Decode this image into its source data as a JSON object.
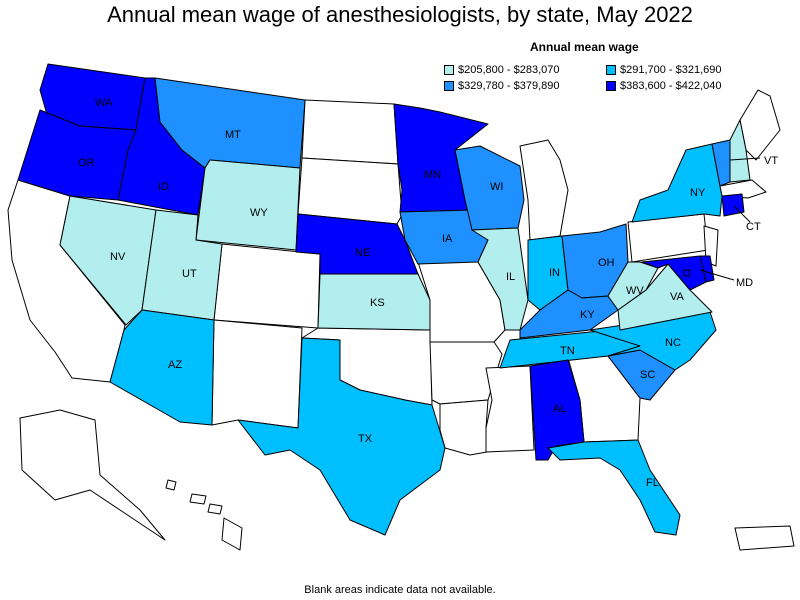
{
  "title": "Annual mean wage of anesthesiologists, by state, May 2022",
  "legend": {
    "title": "Annual mean wage",
    "items": [
      {
        "label": "$205,800 - $283,070",
        "color": "#b3eeee"
      },
      {
        "label": "$291,700 - $321,690",
        "color": "#00bfff"
      },
      {
        "label": "$329,780 - $379,890",
        "color": "#1e90ff"
      },
      {
        "label": "$383,600 - $422,040",
        "color": "#0000ff"
      }
    ]
  },
  "footnote": "Blank areas indicate data not available.",
  "states": {
    "WA": {
      "label": "WA",
      "bin": 3
    },
    "OR": {
      "label": "OR",
      "bin": 3
    },
    "ID": {
      "label": "ID",
      "bin": 3
    },
    "MT": {
      "label": "MT",
      "bin": 2
    },
    "WY": {
      "label": "WY",
      "bin": 0
    },
    "NV": {
      "label": "NV",
      "bin": 0
    },
    "UT": {
      "label": "UT",
      "bin": 0
    },
    "AZ": {
      "label": "AZ",
      "bin": 1
    },
    "NE": {
      "label": "NE",
      "bin": 3
    },
    "KS": {
      "label": "KS",
      "bin": 0
    },
    "TX": {
      "label": "TX",
      "bin": 1
    },
    "MN": {
      "label": "MN",
      "bin": 3
    },
    "IA": {
      "label": "IA",
      "bin": 2
    },
    "WI": {
      "label": "WI",
      "bin": 2
    },
    "IL": {
      "label": "IL",
      "bin": 0
    },
    "IN": {
      "label": "IN",
      "bin": 1
    },
    "OH": {
      "label": "OH",
      "bin": 2
    },
    "KY": {
      "label": "KY",
      "bin": 2
    },
    "TN": {
      "label": "TN",
      "bin": 1
    },
    "AL": {
      "label": "AL",
      "bin": 3
    },
    "FL": {
      "label": "FL",
      "bin": 1
    },
    "SC": {
      "label": "SC",
      "bin": 2
    },
    "NC": {
      "label": "NC",
      "bin": 1
    },
    "VA": {
      "label": "VA",
      "bin": 0
    },
    "WV": {
      "label": "WV",
      "bin": 0
    },
    "MD": {
      "label": "MD",
      "bin": 3
    },
    "NY": {
      "label": "NY",
      "bin": 1
    },
    "VT": {
      "label": "VT",
      "bin": 2
    },
    "CT": {
      "label": "CT",
      "bin": 3
    },
    "NH": {
      "label": "",
      "bin": 0
    },
    "DE": {
      "label": "",
      "bin": 3
    },
    "DC": {
      "label": "",
      "bin": 3
    }
  }
}
